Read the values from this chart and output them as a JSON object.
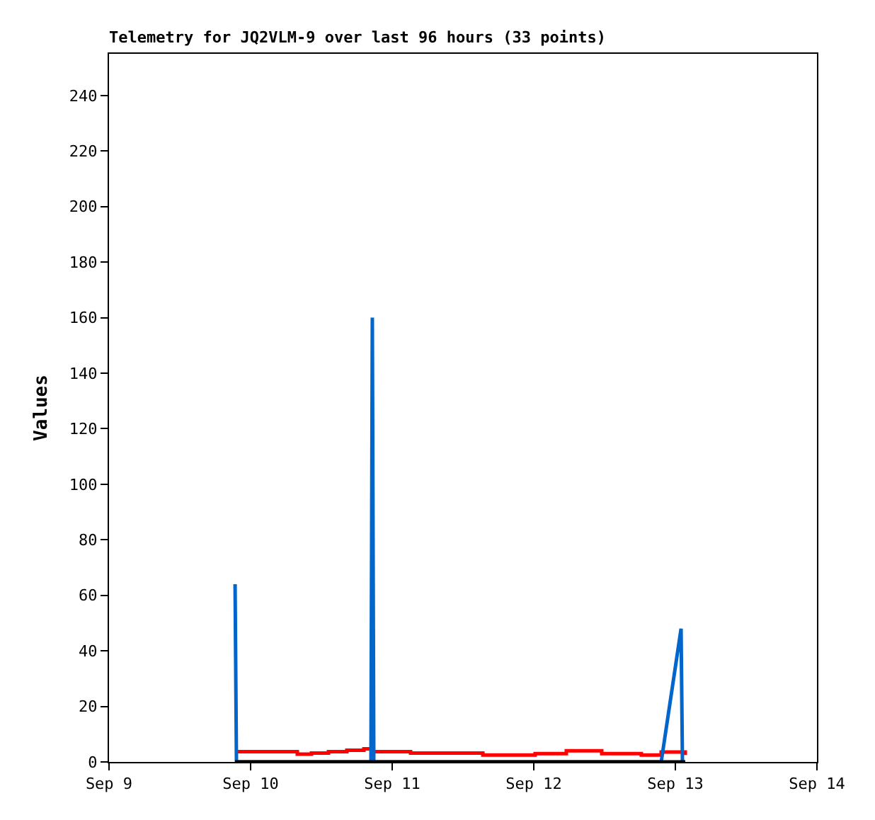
{
  "chart_data": {
    "type": "line",
    "title": "Telemetry for JQ2VLM-9 over last 96 hours (33 points)",
    "ylabel": "Values",
    "xlim": [
      "--09-09",
      "--09-14"
    ],
    "xticks": [
      {
        "value": "--09-09",
        "label": "Sep 9"
      },
      {
        "value": "--09-10",
        "label": "Sep 10"
      },
      {
        "value": "--09-11",
        "label": "Sep 11"
      },
      {
        "value": "--09-12",
        "label": "Sep 12"
      },
      {
        "value": "--09-13",
        "label": "Sep 13"
      },
      {
        "value": "--09-14",
        "label": "Sep 14"
      }
    ],
    "ylim": [
      0,
      255
    ],
    "yticks": [
      0,
      20,
      40,
      60,
      80,
      100,
      120,
      140,
      160,
      180,
      200,
      220,
      240
    ],
    "marker": "none",
    "line_style": "solid",
    "series": [
      {
        "type": "step",
        "color": "#ff0000",
        "x": [
          "--09-09T21:22",
          "--09-10T07:55",
          "--09-10T10:19",
          "--09-10T13:12",
          "--09-10T16:19",
          "--09-10T19:12",
          "--09-10T20:38",
          "--09-11T03:07",
          "--09-11T15:22",
          "--09-12T00:14",
          "--09-12T05:31",
          "--09-12T11:31",
          "--09-12T18:14",
          "--09-12T21:36",
          "--09-13T01:41"
        ],
        "values": [
          3.7,
          2.8,
          3.2,
          3.7,
          4.2,
          4.7,
          3.7,
          3.2,
          2.5,
          3.0,
          4.0,
          3.0,
          2.5,
          3.6,
          2.5
        ]
      },
      {
        "color": "#0066cc",
        "x": [
          "--09-09T21:22",
          "--09-09T21:36",
          "--09-10T20:24",
          "--09-10T20:38",
          "--09-10T20:53",
          "--09-12T21:36",
          "--09-13T00:58",
          "--09-13T01:12"
        ],
        "values": [
          64,
          0,
          0,
          160,
          0,
          0,
          48,
          0
        ]
      },
      {
        "color": "#000000",
        "x": [
          "--09-09T21:22",
          "--09-13T01:41"
        ],
        "values": [
          0,
          0
        ]
      }
    ]
  }
}
